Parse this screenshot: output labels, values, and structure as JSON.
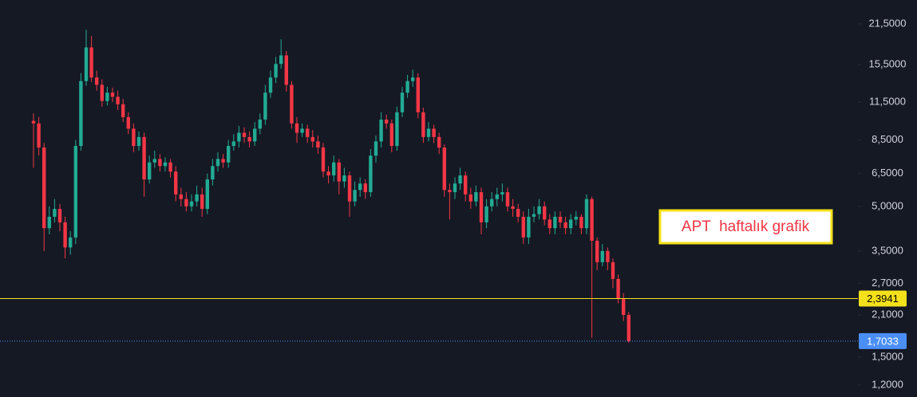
{
  "chart_data": {
    "type": "candlestick",
    "log_scale": true,
    "background": "#151924",
    "up_color": "#22ab94",
    "down_color": "#f23645",
    "ylim": [
      1.09,
      26.0
    ],
    "yticks": [
      {
        "value": 21.5,
        "label": "21,5000"
      },
      {
        "value": 15.5,
        "label": "15,5000"
      },
      {
        "value": 11.5,
        "label": "11,5000"
      },
      {
        "value": 8.5,
        "label": "8,5000"
      },
      {
        "value": 6.5,
        "label": "6,5000"
      },
      {
        "value": 5.0,
        "label": "5,0000"
      },
      {
        "value": 3.5,
        "label": "3,5000"
      },
      {
        "value": 2.7,
        "label": "2,7000"
      },
      {
        "value": 2.1,
        "label": "2,1000"
      },
      {
        "value": 1.5,
        "label": "1,5000"
      },
      {
        "value": 1.2,
        "label": "1,2000"
      }
    ],
    "open": [
      9.9,
      9.7,
      8.0,
      4.2,
      4.6,
      4.9,
      4.4,
      3.6,
      3.9,
      8.1,
      13.6,
      17.8,
      14.0,
      13.2,
      11.6,
      12.4,
      12.0,
      11.3,
      10.2,
      9.3,
      8.1,
      8.7,
      6.2,
      7.1,
      7.3,
      6.9,
      7.1,
      6.6,
      5.5,
      5.3,
      5.0,
      5.2,
      5.5,
      4.9,
      6.2,
      6.9,
      7.3,
      7.1,
      8.1,
      8.4,
      9.0,
      8.7,
      8.4,
      9.3,
      10.0,
      12.4,
      14.0,
      15.6,
      16.7,
      13.2,
      9.7,
      9.0,
      9.3,
      8.7,
      8.4,
      8.0,
      6.6,
      6.4,
      7.1,
      6.1,
      6.4,
      5.2,
      5.7,
      6.0,
      5.6,
      7.5,
      8.4,
      10.0,
      9.7,
      8.1,
      10.6,
      12.4,
      13.6,
      14.0,
      10.6,
      8.7,
      9.3,
      8.7,
      8.0,
      5.7,
      5.6,
      6.0,
      6.4,
      5.5,
      5.2,
      5.6,
      4.4,
      5.0,
      5.3,
      5.5,
      5.6,
      5.0,
      4.9,
      4.6,
      3.9,
      4.6,
      4.7,
      5.0,
      4.5,
      4.2,
      4.6,
      4.4,
      4.2,
      4.5,
      4.6,
      4.2,
      5.3,
      3.8,
      3.2,
      3.5,
      3.2,
      2.8,
      2.4,
      2.1
    ],
    "high": [
      10.5,
      10.2,
      8.3,
      5.0,
      5.3,
      5.1,
      4.6,
      4.1,
      8.5,
      14.5,
      20.5,
      19.5,
      14.8,
      13.8,
      13.0,
      12.9,
      12.6,
      11.8,
      10.6,
      9.7,
      9.1,
      9.0,
      7.5,
      7.8,
      7.6,
      7.4,
      7.3,
      6.9,
      5.8,
      5.6,
      5.5,
      5.9,
      5.8,
      6.5,
      7.3,
      7.7,
      7.6,
      8.5,
      8.9,
      9.5,
      9.4,
      9.1,
      9.8,
      10.5,
      13.2,
      14.8,
      16.5,
      19.0,
      17.3,
      13.6,
      10.2,
      9.7,
      9.6,
      9.2,
      8.8,
      8.3,
      6.9,
      7.5,
      7.3,
      6.8,
      6.6,
      6.1,
      6.3,
      6.2,
      7.9,
      8.8,
      10.6,
      10.4,
      10.0,
      11.1,
      13.0,
      14.3,
      14.9,
      14.5,
      11.0,
      9.8,
      9.6,
      9.0,
      8.2,
      6.0,
      6.3,
      6.8,
      6.6,
      5.8,
      5.9,
      5.8,
      5.3,
      5.6,
      5.8,
      6.0,
      5.8,
      5.3,
      5.1,
      4.8,
      4.9,
      5.0,
      5.3,
      5.2,
      4.7,
      4.8,
      4.8,
      4.6,
      4.7,
      4.8,
      4.7,
      5.5,
      5.4,
      3.9,
      3.7,
      3.6,
      3.3,
      2.9,
      2.5,
      2.15
    ],
    "low": [
      6.8,
      7.5,
      3.5,
      4.0,
      4.4,
      4.1,
      3.3,
      3.4,
      3.7,
      7.8,
      13.1,
      13.5,
      12.6,
      11.1,
      11.2,
      11.5,
      10.8,
      9.8,
      8.9,
      7.7,
      7.8,
      5.4,
      6.0,
      6.8,
      6.6,
      6.6,
      6.3,
      5.2,
      5.0,
      4.8,
      4.8,
      5.0,
      4.6,
      4.7,
      5.9,
      6.6,
      6.8,
      6.8,
      7.8,
      8.0,
      8.3,
      8.0,
      8.1,
      8.9,
      9.6,
      11.9,
      13.4,
      15.0,
      12.5,
      9.3,
      8.3,
      8.7,
      8.3,
      8.0,
      7.6,
      6.3,
      6.0,
      6.1,
      5.5,
      5.8,
      4.6,
      5.0,
      5.4,
      5.3,
      5.4,
      7.1,
      8.0,
      9.3,
      7.7,
      7.8,
      10.2,
      11.9,
      13.0,
      10.1,
      8.3,
      8.4,
      8.3,
      7.6,
      5.4,
      4.5,
      5.3,
      5.7,
      5.2,
      4.9,
      5.0,
      4.0,
      4.2,
      4.8,
      5.0,
      5.2,
      4.8,
      4.6,
      4.4,
      3.7,
      3.7,
      4.4,
      4.5,
      4.3,
      4.0,
      4.0,
      4.2,
      4.0,
      4.0,
      4.3,
      4.0,
      4.0,
      1.75,
      3.0,
      3.1,
      3.0,
      2.6,
      2.3,
      2.0,
      1.68
    ],
    "close": [
      9.7,
      8.0,
      4.2,
      4.6,
      4.9,
      4.4,
      3.6,
      3.9,
      8.1,
      13.6,
      17.8,
      14.0,
      13.2,
      11.6,
      12.4,
      12.0,
      11.3,
      10.2,
      9.3,
      8.1,
      8.7,
      6.2,
      7.1,
      7.3,
      6.9,
      7.1,
      6.6,
      5.5,
      5.3,
      5.0,
      5.2,
      5.5,
      4.9,
      6.2,
      6.9,
      7.3,
      7.1,
      8.1,
      8.4,
      9.0,
      8.7,
      8.4,
      9.3,
      10.0,
      12.4,
      14.0,
      15.6,
      16.7,
      13.2,
      9.7,
      9.0,
      9.3,
      8.7,
      8.4,
      8.0,
      6.6,
      6.4,
      7.1,
      6.1,
      6.4,
      5.2,
      5.7,
      6.0,
      5.6,
      7.5,
      8.4,
      10.0,
      9.7,
      8.1,
      10.6,
      12.4,
      13.6,
      14.0,
      10.6,
      8.7,
      9.3,
      8.7,
      8.0,
      5.7,
      5.6,
      6.0,
      6.4,
      5.5,
      5.2,
      5.6,
      4.4,
      5.0,
      5.3,
      5.5,
      5.6,
      5.0,
      4.9,
      4.6,
      3.9,
      4.6,
      4.7,
      5.0,
      4.5,
      4.2,
      4.6,
      4.4,
      4.2,
      4.5,
      4.6,
      4.2,
      5.3,
      3.8,
      3.2,
      3.5,
      3.2,
      2.8,
      2.4,
      2.1,
      1.7033
    ],
    "price_lines": [
      {
        "value": 2.3941,
        "label": "2,3941",
        "color": "#f5e11a",
        "text_color": "#000000",
        "style": "solid"
      },
      {
        "value": 1.7033,
        "label": "1,7033",
        "color": "#4a8ff7",
        "text_color": "#ffffff",
        "style": "dotted"
      }
    ],
    "annotation": {
      "text": "APT  haftalık grafik",
      "color": "#f23645",
      "border": "#f5e11a"
    }
  }
}
